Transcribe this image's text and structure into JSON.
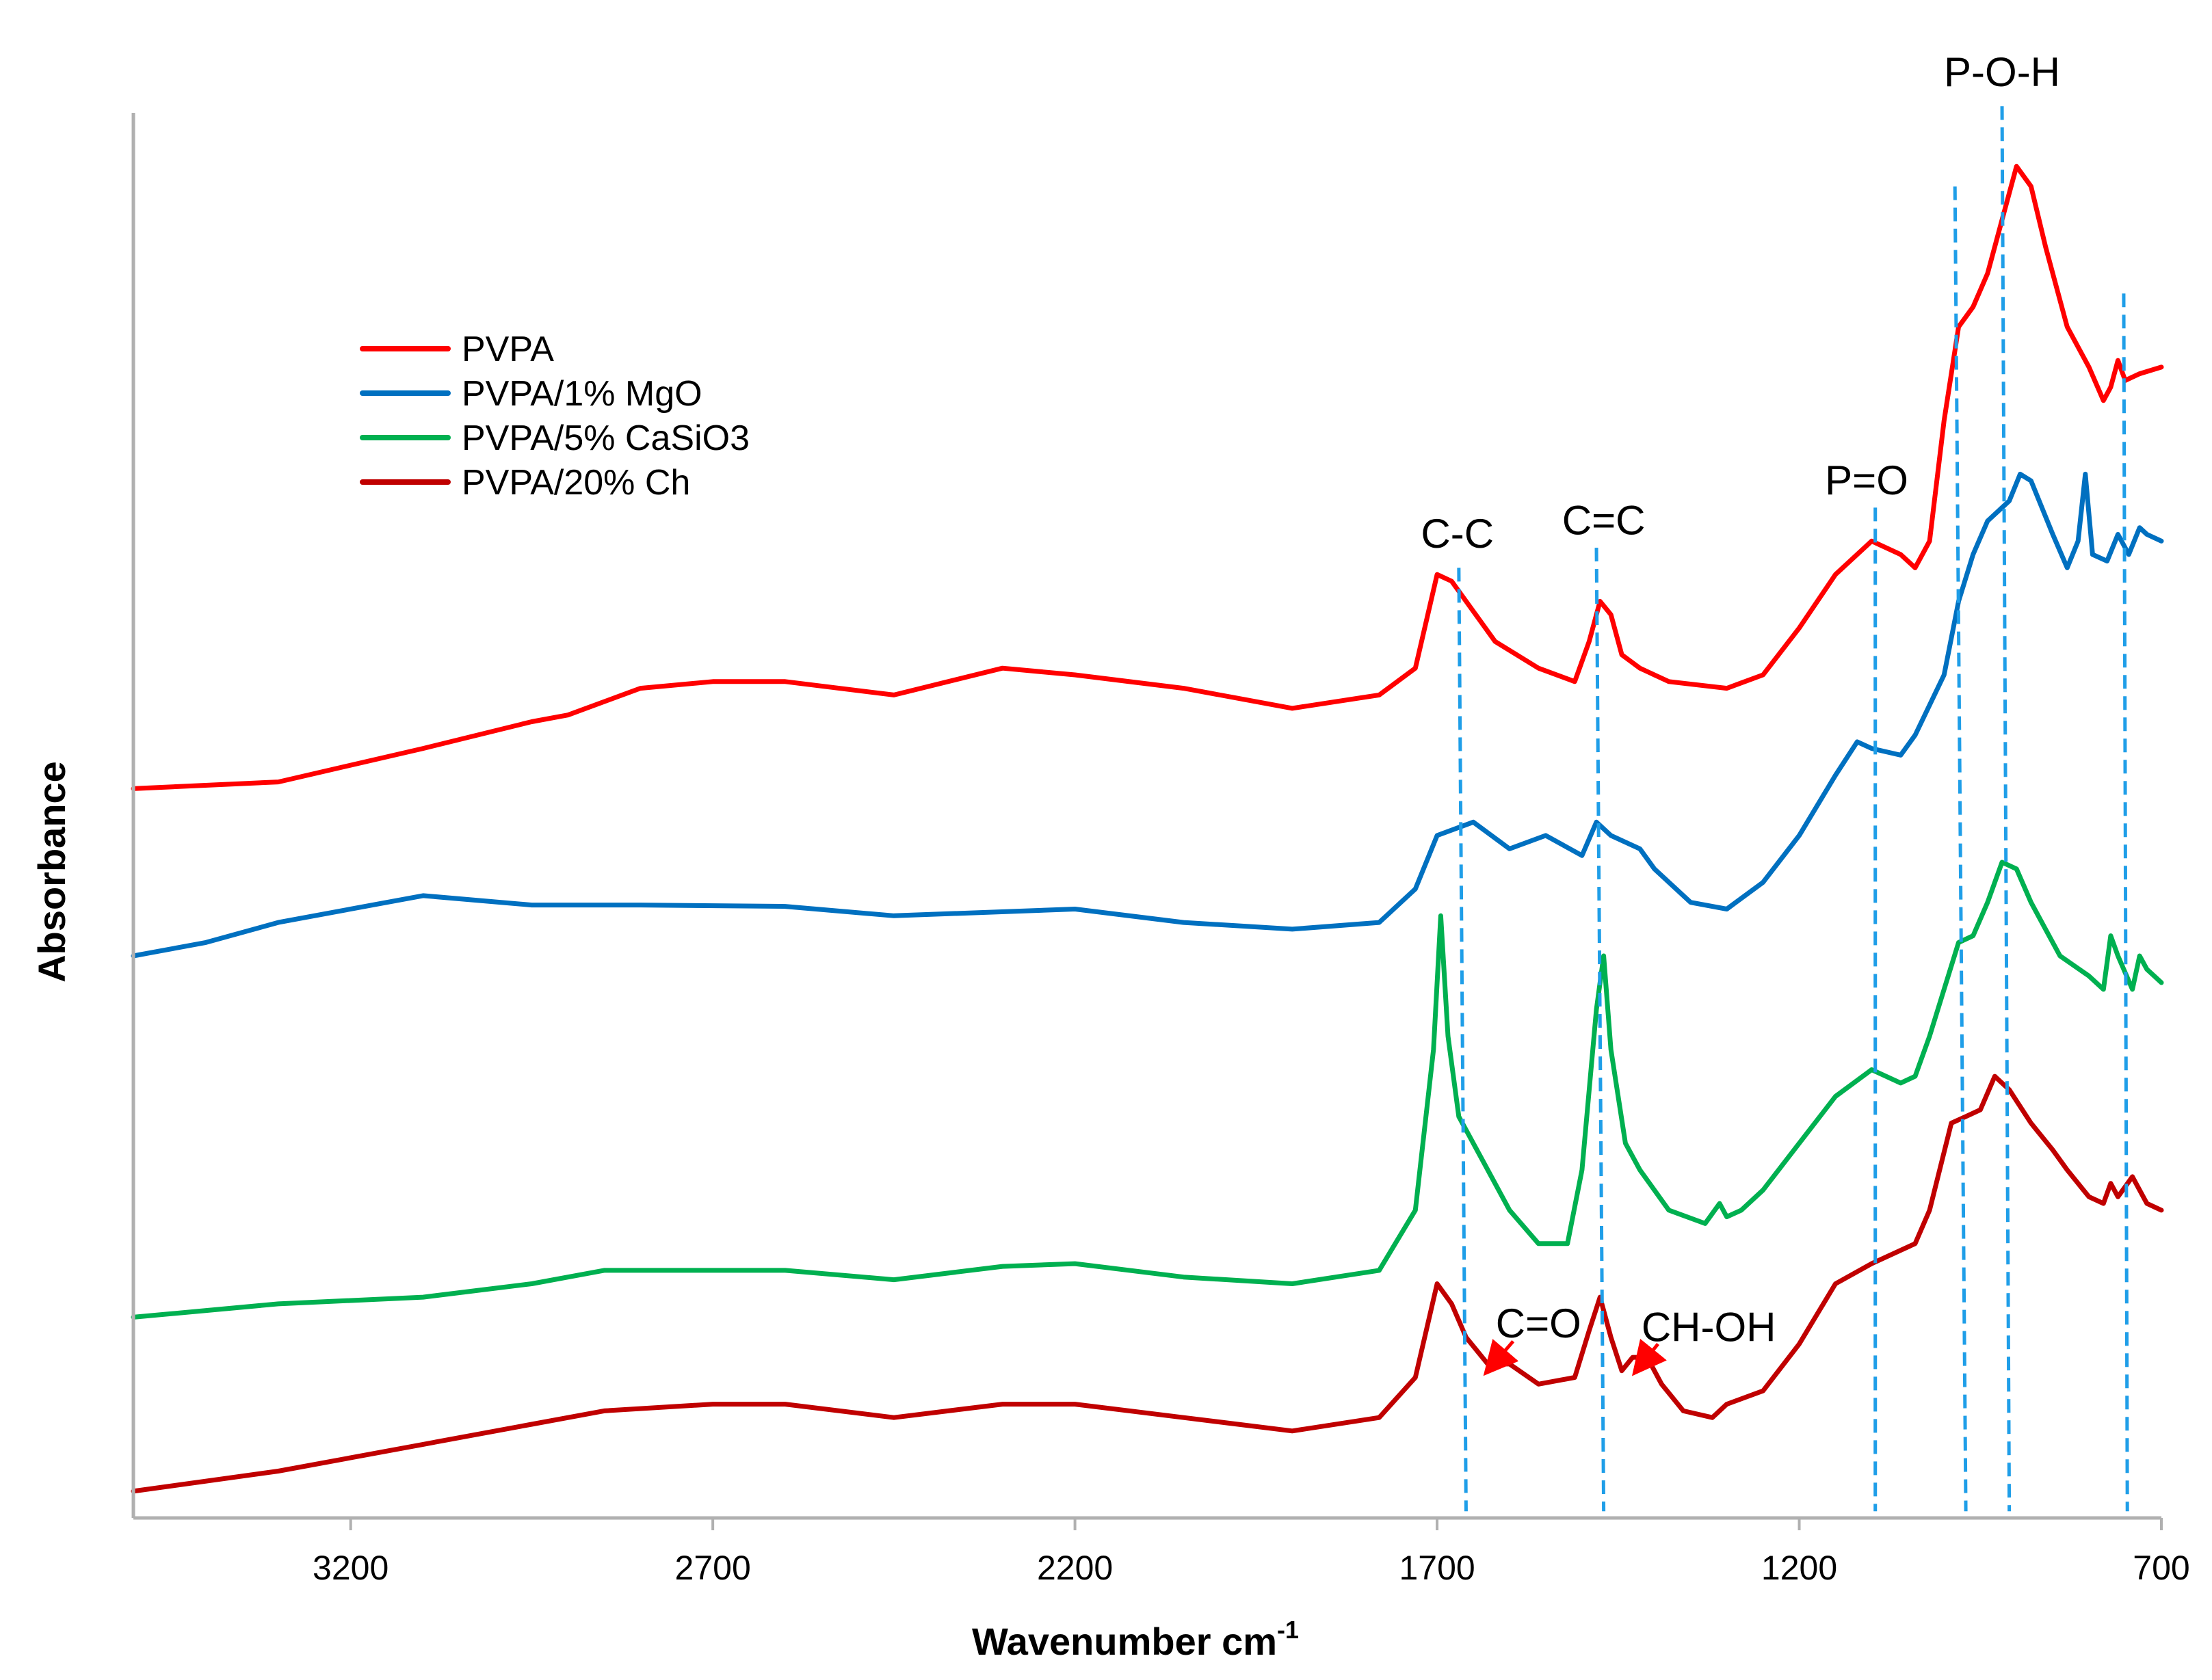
{
  "chart_data": {
    "type": "line",
    "title": "",
    "xlabel": "Wavenumber cm",
    "xlabel_sup": "-1",
    "ylabel": "Absorbance",
    "xlim": [
      3500,
      700
    ],
    "ylim": [
      0,
      10.5
    ],
    "x_ticks": [
      "3200",
      "2700",
      "2200",
      "1700",
      "1200",
      "700"
    ],
    "x_tick_values": [
      3200,
      2700,
      2200,
      1700,
      1200,
      700
    ],
    "grid": false,
    "legend_position": "upper-left",
    "series": [
      {
        "name": "PVPA",
        "color": "#ff0000",
        "points": [
          [
            3500,
            5.45
          ],
          [
            3300,
            5.5
          ],
          [
            3100,
            5.75
          ],
          [
            2950,
            5.95
          ],
          [
            2900,
            6.0
          ],
          [
            2800,
            6.2
          ],
          [
            2700,
            6.25
          ],
          [
            2600,
            6.25
          ],
          [
            2450,
            6.15
          ],
          [
            2300,
            6.35
          ],
          [
            2200,
            6.3
          ],
          [
            2050,
            6.2
          ],
          [
            1900,
            6.05
          ],
          [
            1780,
            6.15
          ],
          [
            1730,
            6.35
          ],
          [
            1700,
            7.05
          ],
          [
            1680,
            7.0
          ],
          [
            1620,
            6.55
          ],
          [
            1560,
            6.35
          ],
          [
            1510,
            6.25
          ],
          [
            1490,
            6.55
          ],
          [
            1475,
            6.85
          ],
          [
            1460,
            6.75
          ],
          [
            1445,
            6.45
          ],
          [
            1420,
            6.35
          ],
          [
            1380,
            6.25
          ],
          [
            1300,
            6.2
          ],
          [
            1250,
            6.3
          ],
          [
            1200,
            6.65
          ],
          [
            1150,
            7.05
          ],
          [
            1100,
            7.3
          ],
          [
            1060,
            7.2
          ],
          [
            1040,
            7.1
          ],
          [
            1020,
            7.3
          ],
          [
            1000,
            8.2
          ],
          [
            980,
            8.9
          ],
          [
            960,
            9.05
          ],
          [
            940,
            9.3
          ],
          [
            920,
            9.7
          ],
          [
            900,
            10.1
          ],
          [
            880,
            9.95
          ],
          [
            860,
            9.5
          ],
          [
            830,
            8.9
          ],
          [
            800,
            8.6
          ],
          [
            780,
            8.35
          ],
          [
            770,
            8.45
          ],
          [
            760,
            8.65
          ],
          [
            750,
            8.5
          ],
          [
            730,
            8.55
          ],
          [
            700,
            8.6
          ]
        ]
      },
      {
        "name": "PVPA/1% MgO",
        "color": "#0070c0",
        "points": [
          [
            3500,
            4.2
          ],
          [
            3400,
            4.3
          ],
          [
            3300,
            4.45
          ],
          [
            3150,
            4.6
          ],
          [
            3100,
            4.65
          ],
          [
            2950,
            4.58
          ],
          [
            2800,
            4.58
          ],
          [
            2600,
            4.57
          ],
          [
            2450,
            4.5
          ],
          [
            2200,
            4.55
          ],
          [
            2050,
            4.45
          ],
          [
            1900,
            4.4
          ],
          [
            1780,
            4.45
          ],
          [
            1730,
            4.7
          ],
          [
            1700,
            5.1
          ],
          [
            1650,
            5.2
          ],
          [
            1600,
            5.0
          ],
          [
            1550,
            5.1
          ],
          [
            1500,
            4.95
          ],
          [
            1480,
            5.2
          ],
          [
            1460,
            5.1
          ],
          [
            1420,
            5.0
          ],
          [
            1400,
            4.85
          ],
          [
            1350,
            4.6
          ],
          [
            1300,
            4.55
          ],
          [
            1250,
            4.75
          ],
          [
            1200,
            5.1
          ],
          [
            1150,
            5.55
          ],
          [
            1120,
            5.8
          ],
          [
            1100,
            5.75
          ],
          [
            1060,
            5.7
          ],
          [
            1040,
            5.85
          ],
          [
            1000,
            6.3
          ],
          [
            980,
            6.85
          ],
          [
            960,
            7.2
          ],
          [
            940,
            7.45
          ],
          [
            910,
            7.6
          ],
          [
            895,
            7.8
          ],
          [
            880,
            7.75
          ],
          [
            850,
            7.35
          ],
          [
            830,
            7.1
          ],
          [
            815,
            7.3
          ],
          [
            805,
            7.8
          ],
          [
            795,
            7.2
          ],
          [
            775,
            7.15
          ],
          [
            760,
            7.35
          ],
          [
            745,
            7.2
          ],
          [
            730,
            7.4
          ],
          [
            720,
            7.35
          ],
          [
            700,
            7.3
          ]
        ]
      },
      {
        "name": "PVPA/5% CaSiO3",
        "color": "#00b050",
        "points": [
          [
            3500,
            1.5
          ],
          [
            3300,
            1.6
          ],
          [
            3100,
            1.65
          ],
          [
            2950,
            1.75
          ],
          [
            2850,
            1.85
          ],
          [
            2700,
            1.85
          ],
          [
            2600,
            1.85
          ],
          [
            2450,
            1.78
          ],
          [
            2300,
            1.88
          ],
          [
            2200,
            1.9
          ],
          [
            2050,
            1.8
          ],
          [
            1900,
            1.75
          ],
          [
            1780,
            1.85
          ],
          [
            1730,
            2.3
          ],
          [
            1705,
            3.5
          ],
          [
            1695,
            4.5
          ],
          [
            1685,
            3.6
          ],
          [
            1670,
            3.0
          ],
          [
            1640,
            2.7
          ],
          [
            1600,
            2.3
          ],
          [
            1560,
            2.05
          ],
          [
            1520,
            2.05
          ],
          [
            1500,
            2.6
          ],
          [
            1480,
            3.8
          ],
          [
            1470,
            4.2
          ],
          [
            1460,
            3.5
          ],
          [
            1440,
            2.8
          ],
          [
            1420,
            2.6
          ],
          [
            1380,
            2.3
          ],
          [
            1330,
            2.2
          ],
          [
            1310,
            2.35
          ],
          [
            1300,
            2.25
          ],
          [
            1280,
            2.3
          ],
          [
            1250,
            2.45
          ],
          [
            1200,
            2.8
          ],
          [
            1150,
            3.15
          ],
          [
            1100,
            3.35
          ],
          [
            1060,
            3.25
          ],
          [
            1040,
            3.3
          ],
          [
            1020,
            3.6
          ],
          [
            980,
            4.3
          ],
          [
            960,
            4.35
          ],
          [
            940,
            4.6
          ],
          [
            920,
            4.9
          ],
          [
            900,
            4.85
          ],
          [
            880,
            4.6
          ],
          [
            860,
            4.4
          ],
          [
            840,
            4.2
          ],
          [
            800,
            4.05
          ],
          [
            780,
            3.95
          ],
          [
            770,
            4.35
          ],
          [
            760,
            4.2
          ],
          [
            740,
            3.95
          ],
          [
            730,
            4.2
          ],
          [
            720,
            4.1
          ],
          [
            700,
            4.0
          ]
        ]
      },
      {
        "name": "PVPA/20% Ch",
        "color": "#c00000",
        "points": [
          [
            3500,
            0.2
          ],
          [
            3300,
            0.35
          ],
          [
            3100,
            0.55
          ],
          [
            2950,
            0.7
          ],
          [
            2850,
            0.8
          ],
          [
            2700,
            0.85
          ],
          [
            2600,
            0.85
          ],
          [
            2450,
            0.75
          ],
          [
            2300,
            0.85
          ],
          [
            2200,
            0.85
          ],
          [
            2050,
            0.75
          ],
          [
            1900,
            0.65
          ],
          [
            1780,
            0.75
          ],
          [
            1730,
            1.05
          ],
          [
            1700,
            1.75
          ],
          [
            1680,
            1.6
          ],
          [
            1660,
            1.35
          ],
          [
            1630,
            1.15
          ],
          [
            1600,
            1.15
          ],
          [
            1560,
            1.0
          ],
          [
            1510,
            1.05
          ],
          [
            1490,
            1.4
          ],
          [
            1475,
            1.65
          ],
          [
            1460,
            1.35
          ],
          [
            1445,
            1.1
          ],
          [
            1430,
            1.2
          ],
          [
            1410,
            1.2
          ],
          [
            1390,
            1.0
          ],
          [
            1360,
            0.8
          ],
          [
            1320,
            0.75
          ],
          [
            1300,
            0.85
          ],
          [
            1250,
            0.95
          ],
          [
            1200,
            1.3
          ],
          [
            1150,
            1.75
          ],
          [
            1100,
            1.9
          ],
          [
            1060,
            2.0
          ],
          [
            1040,
            2.05
          ],
          [
            1020,
            2.3
          ],
          [
            990,
            2.95
          ],
          [
            970,
            3.0
          ],
          [
            950,
            3.05
          ],
          [
            930,
            3.3
          ],
          [
            910,
            3.2
          ],
          [
            880,
            2.95
          ],
          [
            850,
            2.75
          ],
          [
            830,
            2.6
          ],
          [
            800,
            2.4
          ],
          [
            780,
            2.35
          ],
          [
            770,
            2.5
          ],
          [
            760,
            2.4
          ],
          [
            740,
            2.55
          ],
          [
            720,
            2.35
          ],
          [
            700,
            2.3
          ]
        ]
      }
    ],
    "peak_lines": [
      {
        "label": "C-C",
        "points": [
          [
            1670,
            7.1
          ],
          [
            1660,
            0.05
          ]
        ]
      },
      {
        "label": "C=C",
        "points": [
          [
            1480,
            7.25
          ],
          [
            1470,
            0.05
          ]
        ]
      },
      {
        "label": "P=O",
        "points": [
          [
            1095,
            7.55
          ],
          [
            1095,
            0.05
          ]
        ]
      },
      {
        "label": "",
        "points": [
          [
            985,
            9.95
          ],
          [
            970,
            0.05
          ]
        ]
      },
      {
        "label": "P-O-H",
        "points": [
          [
            920,
            10.55
          ],
          [
            910,
            0.05
          ]
        ]
      },
      {
        "label": "",
        "points": [
          [
            752,
            9.15
          ],
          [
            747,
            0.05
          ]
        ]
      }
    ],
    "annotations": [
      {
        "text": "C-C",
        "x": 1672,
        "y": 7.25
      },
      {
        "text": "C=C",
        "x": 1470,
        "y": 7.35
      },
      {
        "text": "P=O",
        "x": 1107,
        "y": 7.65
      },
      {
        "text": "P-O-H",
        "x": 920,
        "y": 10.7
      },
      {
        "text": "C=O",
        "x": 1560,
        "y": 1.35
      },
      {
        "text": "CH-OH",
        "x": 1325,
        "y": 1.32
      }
    ],
    "arrows": [
      {
        "label": "C=O",
        "from": [
          1595,
          1.32
        ],
        "to": [
          1630,
          1.1
        ]
      },
      {
        "label": "CH-OH",
        "from": [
          1395,
          1.3
        ],
        "to": [
          1425,
          1.1
        ]
      }
    ],
    "arrow_color": "#ff0000",
    "peak_line_color": "#1f9ee8"
  }
}
